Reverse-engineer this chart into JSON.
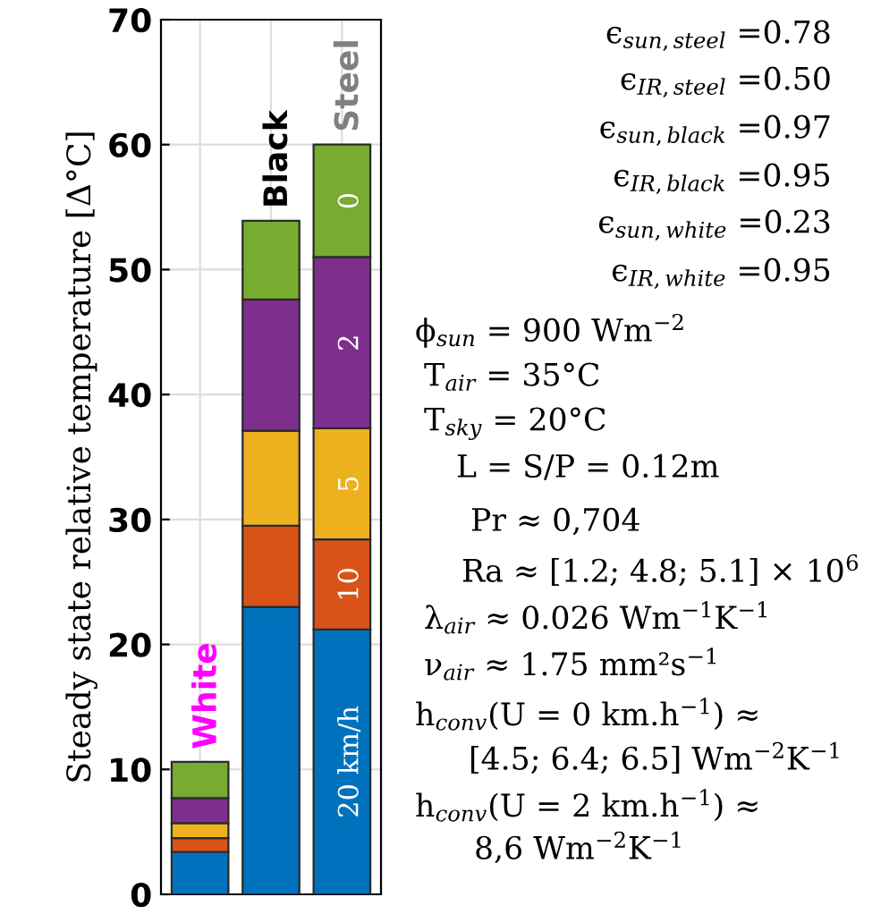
{
  "chart_data": {
    "type": "bar",
    "stacked": true,
    "ylabel": "Steady state relative temperature [Δ°C]",
    "categories": [
      "White",
      "Black",
      "Steel"
    ],
    "series": [
      {
        "name": "20 km/h",
        "color": "#0072bd",
        "values": [
          3.4,
          23.0,
          21.2
        ]
      },
      {
        "name": "10",
        "color": "#d95319",
        "values": [
          1.1,
          6.5,
          7.2
        ]
      },
      {
        "name": "5",
        "color": "#edb120",
        "values": [
          1.2,
          7.6,
          8.9
        ]
      },
      {
        "name": "2",
        "color": "#7e2f8e",
        "values": [
          2.0,
          10.5,
          13.7
        ]
      },
      {
        "name": "0",
        "color": "#77ac30",
        "values": [
          2.9,
          6.3,
          9.0
        ]
      }
    ],
    "ylim": [
      0,
      70
    ],
    "yticks": [
      0,
      10,
      20,
      30,
      40,
      50,
      60,
      70
    ],
    "grid": true,
    "legend": false,
    "tick_labels": "y",
    "annotations": [
      "ϵ$_{sun,steel}$ =0.78",
      "ϵ$_{IR,steel}$ =0.50",
      "ϵ$_{sun,black}$ =0.97",
      "ϵ$_{IR,black}$ =0.95",
      "ϵ$_{sun,white}$ =0.23",
      "ϵ$_{IR,white}$ =0.95",
      "ϕ$_{sun}$ = 900 Wm$^{−2}$",
      "T$_{air}$ = 35°C",
      "T$_{sky}$ = 20°C",
      "L = S/P = 0.12m",
      "Pr ≈ 0,704",
      "Ra ≈ [1.2; 4.8; 5.1] × 10$^{6}$",
      "λ$_{air}$ ≈ 0.026 Wm$^{−1}$K$^{−1}$",
      "ν$_{air}$ ≈ 1.75 mm²s$^{−1}$",
      "h$_{conv}$(U = 0 km.h$^{−1}$) ≈",
      "[4.5; 6.4; 6.5] Wm$^{−2}$K$^{−1}$",
      "h$_{conv}$(U = 2 km.h$^{−1}$) ≈",
      "8,6 Wm$^{−2}$K$^{−1}$"
    ]
  }
}
